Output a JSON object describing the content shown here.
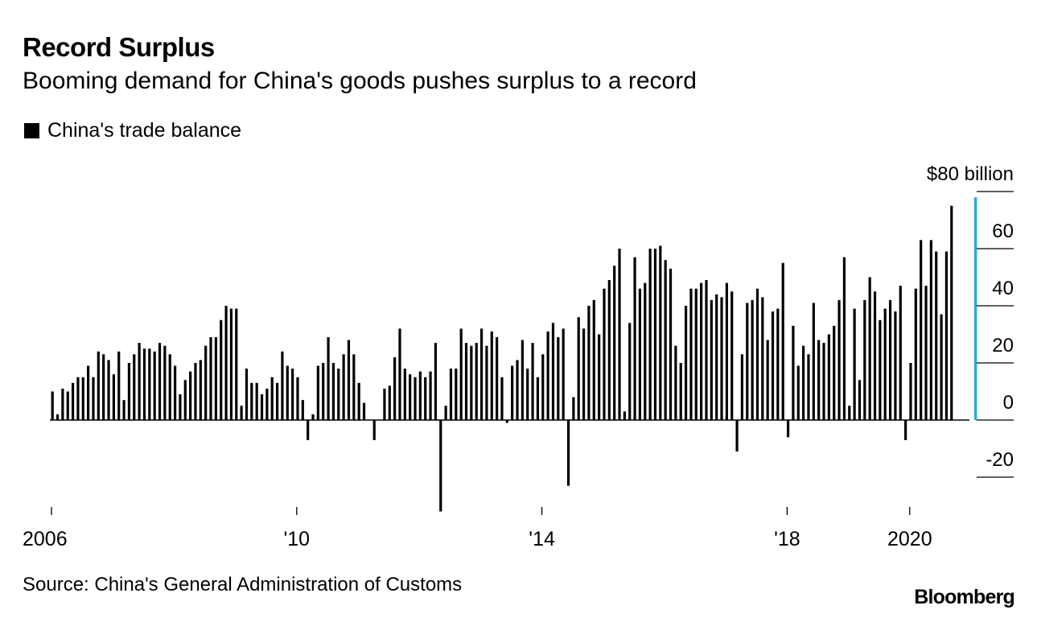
{
  "header": {
    "title": "Record Surplus",
    "subtitle": "Booming demand for China's goods pushes surplus to a record"
  },
  "legend": {
    "label": "China's trade balance",
    "swatch_color": "#000000"
  },
  "footer": {
    "source": "Source: China's General Administration of Customs",
    "brand": "Bloomberg"
  },
  "chart_data": {
    "type": "bar",
    "title": "Record Surplus",
    "subtitle": "Booming demand for China's goods pushes surplus to a record",
    "series": [
      {
        "name": "China's trade balance",
        "color": "#000000",
        "unit": "$ billion",
        "start": "2006-01",
        "frequency": "monthly",
        "values": [
          10,
          2,
          11,
          10,
          13,
          15,
          15,
          19,
          15,
          24,
          23,
          21,
          16,
          24,
          7,
          20,
          23,
          27,
          25,
          25,
          24,
          27,
          26,
          23,
          19,
          9,
          14,
          17,
          20,
          21,
          26,
          29,
          29,
          35,
          40,
          39,
          39,
          5,
          18,
          13,
          13,
          9,
          11,
          15,
          13,
          24,
          19,
          18,
          15,
          7,
          -7,
          2,
          19,
          20,
          29,
          20,
          18,
          23,
          28,
          23,
          13,
          6,
          0,
          -7,
          0,
          11,
          12,
          22,
          32,
          18,
          16,
          15,
          17,
          15,
          17,
          27,
          -32,
          5,
          18,
          18,
          32,
          27,
          26,
          27,
          32,
          26,
          31,
          29,
          15,
          -1,
          19,
          21,
          28,
          18,
          27,
          15,
          23,
          31,
          34,
          29,
          32,
          -23,
          8,
          36,
          32,
          40,
          42,
          30,
          46,
          49,
          54,
          60,
          3,
          34,
          57,
          46,
          48,
          60,
          60,
          61,
          56,
          53,
          26,
          20,
          40,
          46,
          46,
          48,
          49,
          42,
          44,
          43,
          48,
          45,
          -11,
          23,
          41,
          42,
          46,
          43,
          28,
          38,
          39,
          55,
          -6,
          33,
          19,
          26,
          23,
          41,
          28,
          27,
          30,
          33,
          42,
          57,
          5,
          39,
          14,
          42,
          50,
          45,
          35,
          39,
          42,
          38,
          47,
          -7,
          20,
          46,
          63,
          47,
          63,
          59,
          37,
          59,
          75
        ]
      }
    ],
    "x_ticks": [
      {
        "label": "2006",
        "year": 2006
      },
      {
        "label": "'10",
        "year": 2010
      },
      {
        "label": "'14",
        "year": 2014
      },
      {
        "label": "'18",
        "year": 2018
      },
      {
        "label": "2020",
        "year": 2020
      }
    ],
    "y_ticks": [
      {
        "value": 80,
        "label": "$80 billion"
      },
      {
        "value": 60,
        "label": "60"
      },
      {
        "value": 40,
        "label": "40"
      },
      {
        "value": 20,
        "label": "20"
      },
      {
        "value": 0,
        "label": "0"
      },
      {
        "value": -20,
        "label": "-20"
      }
    ],
    "ylim": [
      -32,
      80
    ],
    "highlight": {
      "year": 2021.1,
      "color": "#29a8e0"
    },
    "legend": [
      "China's trade balance"
    ],
    "legend_position": "top-left",
    "y_axis_position": "right",
    "grid": false,
    "xlabel": "",
    "ylabel": ""
  }
}
